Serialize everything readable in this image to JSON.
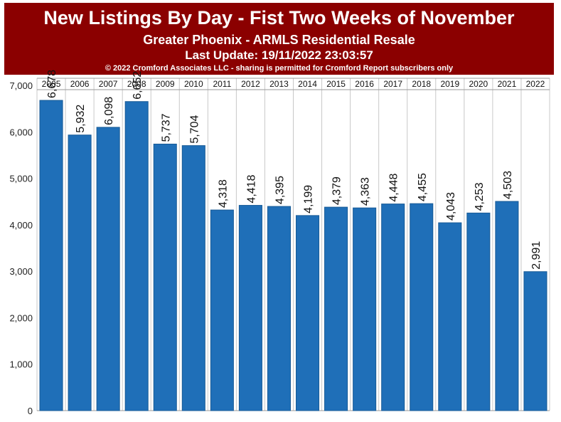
{
  "header": {
    "title": "New Listings By Day - Fist Two Weeks of November",
    "subtitle": "Greater Phoenix - ARMLS Residential Resale",
    "updated": "Last Update: 19/11/2022 23:03:57",
    "copyright": "© 2022 Cromford Associates LLC - sharing is permitted for Cromford Report subscribers only"
  },
  "colors": {
    "banner": "#8b0000",
    "bar": "#1f6fb8",
    "bar_edge": "#175a96"
  },
  "chart_data": {
    "type": "bar",
    "categories": [
      "2005",
      "2006",
      "2007",
      "2008",
      "2009",
      "2010",
      "2011",
      "2012",
      "2013",
      "2014",
      "2015",
      "2016",
      "2017",
      "2018",
      "2019",
      "2020",
      "2021",
      "2022"
    ],
    "values": [
      6678,
      5932,
      6098,
      6652,
      5737,
      5704,
      4318,
      4418,
      4395,
      4199,
      4379,
      4363,
      4448,
      4455,
      4043,
      4253,
      4503,
      2991
    ],
    "value_labels": [
      "6,678",
      "5,932",
      "6,098",
      "6,652",
      "5,737",
      "5,704",
      "4,318",
      "4,418",
      "4,395",
      "4,199",
      "4,379",
      "4,363",
      "4,448",
      "4,455",
      "4,043",
      "4,253",
      "4,503",
      "2,991"
    ],
    "ylim": [
      0,
      7000
    ],
    "yticks": [
      0,
      1000,
      2000,
      3000,
      4000,
      5000,
      6000,
      7000
    ],
    "ytick_labels": [
      "0",
      "1,000",
      "2,000",
      "3,000",
      "4,000",
      "5,000",
      "6,000",
      "7,000"
    ],
    "category_axis": "top",
    "grid": "vertical separators between categories"
  }
}
